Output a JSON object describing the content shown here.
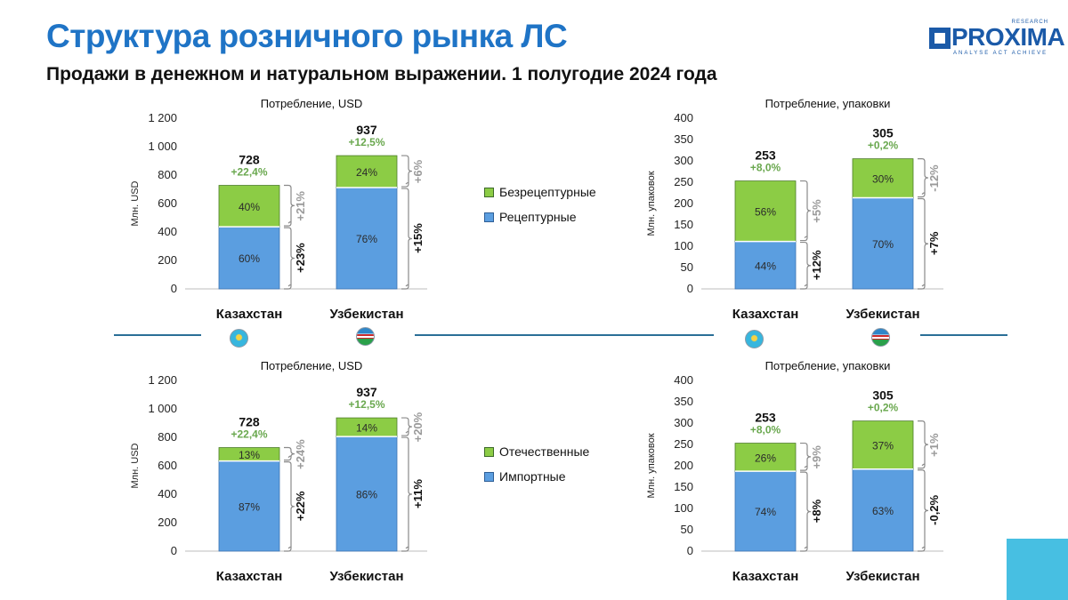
{
  "title": "Структура розничного рынка ЛС",
  "subtitle": "Продажи в денежном и натуральном выражении. 1 полугодие 2024 года",
  "logo": {
    "wordmark": "PROXIMA",
    "research": "RESEARCH",
    "tagline": "ANALYSE ACT ACHIEVE"
  },
  "colors": {
    "green": "#8ccc45",
    "blue": "#5b9ee0",
    "title_blue": "#1f74c6",
    "growth_green": "#6aa84f",
    "change_gray": "#9a9a9a",
    "accent": "#47bfe2"
  },
  "legends": [
    {
      "items": [
        {
          "label": "Безрецептурные",
          "color": "#8ccc45"
        },
        {
          "label": "Рецептурные",
          "color": "#5b9ee0"
        }
      ]
    },
    {
      "items": [
        {
          "label": "Отечественные",
          "color": "#8ccc45"
        },
        {
          "label": "Импортные",
          "color": "#5b9ee0"
        }
      ]
    }
  ],
  "chart_data": [
    {
      "type": "bar",
      "stacked": true,
      "title": "Потребление, USD",
      "ylabel": "Млн. USD",
      "ylim": [
        0,
        1200
      ],
      "yticks": [
        "0",
        "200",
        "400",
        "600",
        "800",
        "1 000",
        "1 200"
      ],
      "ytick_values": [
        0,
        200,
        400,
        600,
        800,
        1000,
        1200
      ],
      "categories": [
        "Казахстан",
        "Узбекистан"
      ],
      "totals": [
        728,
        937
      ],
      "total_labels": [
        "728",
        "937"
      ],
      "growth": [
        "+22,4%",
        "+12,5%"
      ],
      "series": [
        {
          "name": "Рецептурные",
          "share": [
            0.6,
            0.76
          ],
          "labels": [
            "60%",
            "76%"
          ],
          "change": [
            "+23%",
            "+15%"
          ]
        },
        {
          "name": "Безрецептурные",
          "share": [
            0.4,
            0.24
          ],
          "labels": [
            "40%",
            "24%"
          ],
          "change": [
            "+21%",
            "+6%"
          ]
        }
      ]
    },
    {
      "type": "bar",
      "stacked": true,
      "title": "Потребление, упаковки",
      "ylabel": "Млн. упаковок",
      "ylim": [
        0,
        400
      ],
      "yticks": [
        "0",
        "50",
        "100",
        "150",
        "200",
        "250",
        "300",
        "350",
        "400"
      ],
      "ytick_values": [
        0,
        50,
        100,
        150,
        200,
        250,
        300,
        350,
        400
      ],
      "categories": [
        "Казахстан",
        "Узбекистан"
      ],
      "totals": [
        253,
        305
      ],
      "total_labels": [
        "253",
        "305"
      ],
      "growth": [
        "+8,0%",
        "+0,2%"
      ],
      "series": [
        {
          "name": "Рецептурные",
          "share": [
            0.44,
            0.7
          ],
          "labels": [
            "44%",
            "70%"
          ],
          "change": [
            "+12%",
            "+7%"
          ]
        },
        {
          "name": "Безрецептурные",
          "share": [
            0.56,
            0.3
          ],
          "labels": [
            "56%",
            "30%"
          ],
          "change": [
            "+5%",
            "-12%"
          ]
        }
      ]
    },
    {
      "type": "bar",
      "stacked": true,
      "title": "Потребление, USD",
      "ylabel": "Млн. USD",
      "ylim": [
        0,
        1200
      ],
      "yticks": [
        "0",
        "200",
        "400",
        "600",
        "800",
        "1 000",
        "1 200"
      ],
      "ytick_values": [
        0,
        200,
        400,
        600,
        800,
        1000,
        1200
      ],
      "categories": [
        "Казахстан",
        "Узбекистан"
      ],
      "totals": [
        728,
        937
      ],
      "total_labels": [
        "728",
        "937"
      ],
      "growth": [
        "+22,4%",
        "+12,5%"
      ],
      "series": [
        {
          "name": "Импортные",
          "share": [
            0.87,
            0.86
          ],
          "labels": [
            "87%",
            "86%"
          ],
          "change": [
            "+22%",
            "+11%"
          ]
        },
        {
          "name": "Отечественные",
          "share": [
            0.13,
            0.14
          ],
          "labels": [
            "13%",
            "14%"
          ],
          "change": [
            "+24%",
            "+20%"
          ]
        }
      ]
    },
    {
      "type": "bar",
      "stacked": true,
      "title": "Потребление, упаковки",
      "ylabel": "Млн. упаковок",
      "ylim": [
        0,
        400
      ],
      "yticks": [
        "0",
        "50",
        "100",
        "150",
        "200",
        "250",
        "300",
        "350",
        "400"
      ],
      "ytick_values": [
        0,
        50,
        100,
        150,
        200,
        250,
        300,
        350,
        400
      ],
      "categories": [
        "Казахстан",
        "Узбекистан"
      ],
      "totals": [
        253,
        305
      ],
      "total_labels": [
        "253",
        "305"
      ],
      "growth": [
        "+8,0%",
        "+0,2%"
      ],
      "series": [
        {
          "name": "Импортные",
          "share": [
            0.74,
            0.63
          ],
          "labels": [
            "74%",
            "63%"
          ],
          "change": [
            "+8%",
            "-0,2%"
          ]
        },
        {
          "name": "Отечественные",
          "share": [
            0.26,
            0.37
          ],
          "labels": [
            "26%",
            "37%"
          ],
          "change": [
            "+9%",
            "+1%"
          ]
        }
      ]
    }
  ]
}
